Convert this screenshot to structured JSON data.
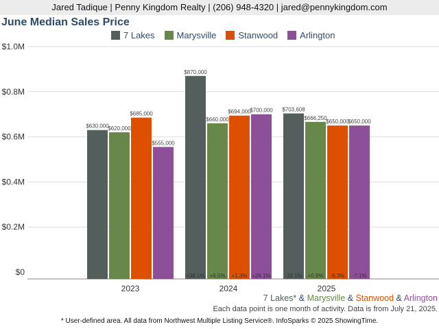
{
  "header": "Jared Tadique | Penny Kingdom Realty | (206) 948-4320 | jared@pennykingdom.com",
  "chart_data": {
    "type": "bar",
    "title": "June Median Sales Price",
    "categories": [
      "2023",
      "2024",
      "2025"
    ],
    "ylim": [
      0,
      1000000
    ],
    "yticks": [
      {
        "v": 0,
        "label": "$0"
      },
      {
        "v": 200000,
        "label": "$0.2M"
      },
      {
        "v": 400000,
        "label": "$0.4M"
      },
      {
        "v": 600000,
        "label": "$0.6M"
      },
      {
        "v": 800000,
        "label": "$0.8M"
      },
      {
        "v": 1000000,
        "label": "$1.0M"
      }
    ],
    "legend_position": "top",
    "series": [
      {
        "name": "7 Lakes",
        "color": "#545e5c",
        "values": [
          630000,
          870000,
          703608
        ],
        "labels": [
          "$630,000",
          "$870,000",
          "$703,608"
        ],
        "changes": [
          "",
          "+38.1%",
          "-19.1%"
        ]
      },
      {
        "name": "Marysville",
        "color": "#67884a",
        "values": [
          620000,
          660000,
          666250
        ],
        "labels": [
          "$620,000",
          "$660,000",
          "$666,250"
        ],
        "changes": [
          "",
          "+6.5%",
          "+0.9%"
        ]
      },
      {
        "name": "Stanwood",
        "color": "#dc5000",
        "values": [
          685000,
          694000,
          650000
        ],
        "labels": [
          "$685,000",
          "$694,000",
          "$650,000"
        ],
        "changes": [
          "",
          "+1.3%",
          "-6.3%"
        ]
      },
      {
        "name": "Arlington",
        "color": "#8d4f98",
        "values": [
          555000,
          700000,
          650000
        ],
        "labels": [
          "$555,000",
          "$700,000",
          "$650,000"
        ],
        "changes": [
          "",
          "+26.1%",
          "-7.1%"
        ]
      }
    ]
  },
  "footer": {
    "areas": [
      {
        "text": "7 Lakes*",
        "color": "#545e5c"
      },
      {
        "text": " & ",
        "color": "#2e4a6b"
      },
      {
        "text": "Marysville",
        "color": "#67884a"
      },
      {
        "text": " & ",
        "color": "#2e4a6b"
      },
      {
        "text": "Stanwood",
        "color": "#dc5000"
      },
      {
        "text": " & ",
        "color": "#2e4a6b"
      },
      {
        "text": "Arlington",
        "color": "#8d4f98"
      }
    ],
    "note": "Each data point is one month of activity. Data is from July 21, 2025.",
    "source": "* User-defined area. All data from Northwest Multiple Listing Service®. InfoSparks © 2025 ShowingTime."
  }
}
